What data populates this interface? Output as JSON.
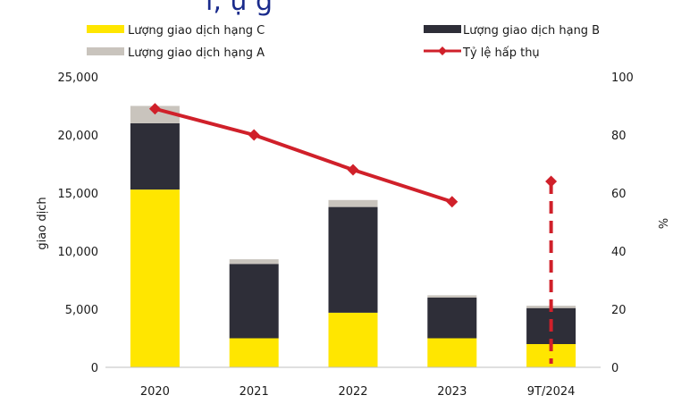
{
  "title_fragment": "ı, ụ g",
  "colors": {
    "grade_c": "#ffe600",
    "grade_b": "#2e2e38",
    "grade_a": "#c9c4bd",
    "absorption": "#d0202a",
    "axis": "#bfbfbf"
  },
  "chart_data": {
    "type": "bar",
    "stacked": true,
    "categories": [
      "2020",
      "2021",
      "2022",
      "2023",
      "9T/2024"
    ],
    "series": [
      {
        "name": "Lượng giao dịch hạng C",
        "axis": "left",
        "values": [
          15300,
          2500,
          4700,
          2500,
          2000
        ]
      },
      {
        "name": "Lượng giao dịch hạng B",
        "axis": "left",
        "values": [
          5700,
          6400,
          9100,
          3500,
          3100
        ]
      },
      {
        "name": "Lượng giao dịch hạng A",
        "axis": "left",
        "values": [
          1500,
          400,
          600,
          200,
          200
        ]
      }
    ],
    "line_series": {
      "name": "Tỷ lệ hấp thụ",
      "axis": "right",
      "values": [
        89,
        80,
        68,
        57,
        64
      ],
      "dashed_last": true
    },
    "ylabel": "giao dịch",
    "y2label": "%",
    "ylim": [
      0,
      25000
    ],
    "y2lim": [
      0,
      100
    ],
    "yticks": [
      "0",
      "5,000",
      "10,000",
      "15,000",
      "20,000",
      "25,000"
    ],
    "ytick_values": [
      0,
      5000,
      10000,
      15000,
      20000,
      25000
    ],
    "y2ticks": [
      "0",
      "20",
      "40",
      "60",
      "80",
      "100"
    ],
    "y2tick_values": [
      0,
      20,
      40,
      60,
      80,
      100
    ],
    "legend": {
      "grade_c": "Lượng giao dịch hạng C",
      "grade_b": "Lượng giao dịch hạng B",
      "grade_a": "Lượng giao dịch hạng A",
      "absorption": "Tỷ lệ hấp thụ"
    }
  }
}
